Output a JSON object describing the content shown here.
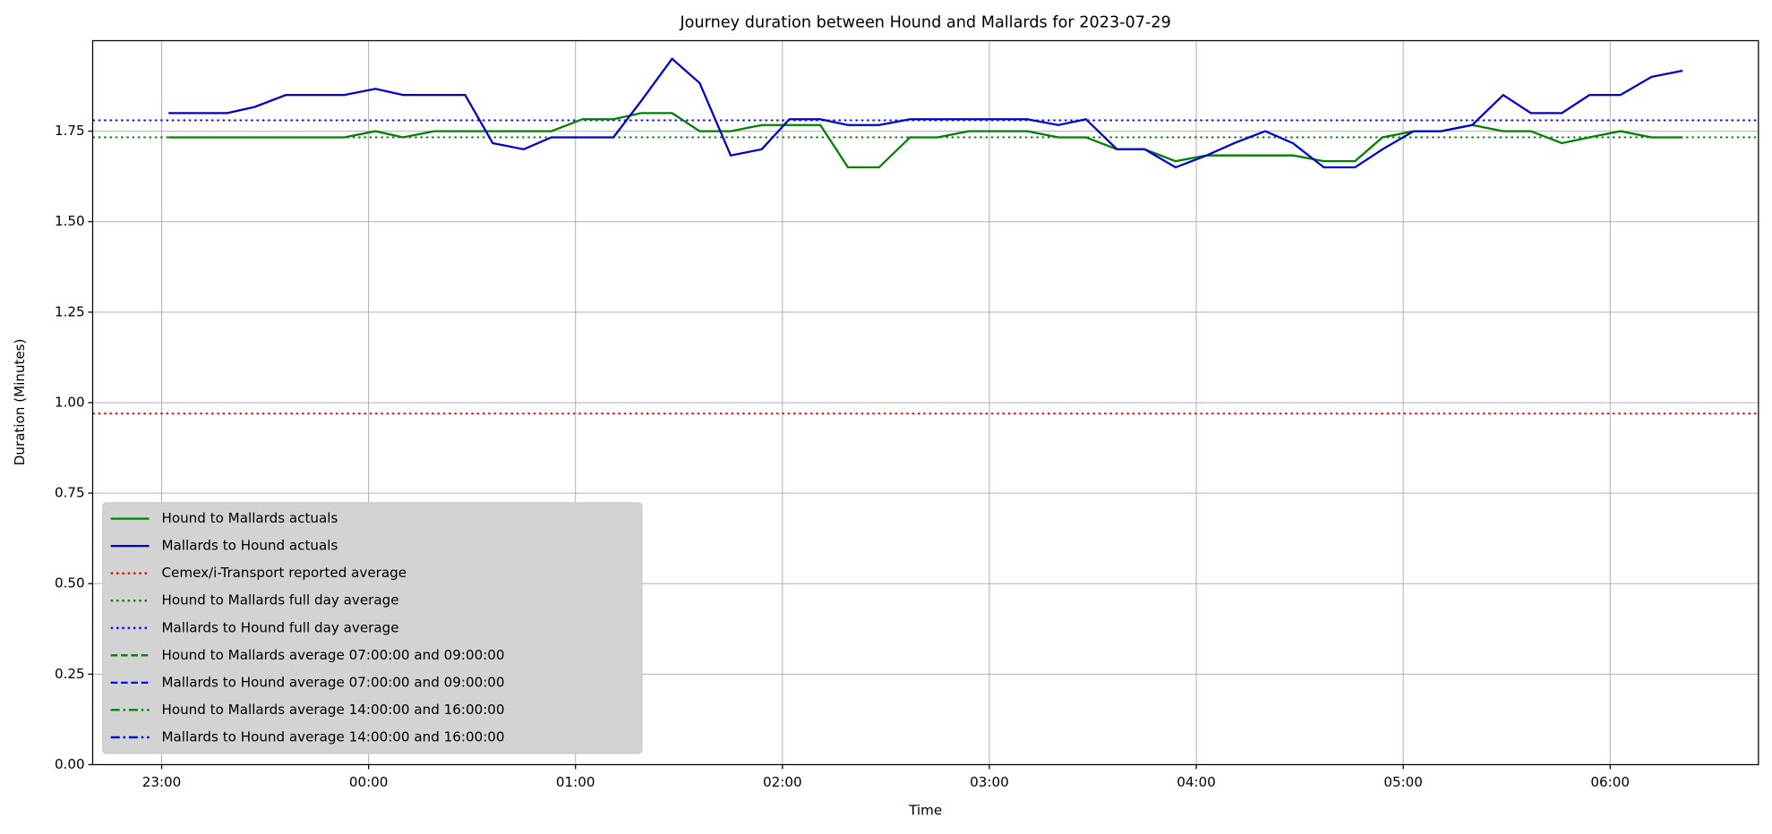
{
  "chart_data": {
    "type": "line",
    "title": "Journey duration between Hound and Mallards for 2023-07-29",
    "x_label": "Time",
    "y_label": "Duration  (Minutes)",
    "grid": true,
    "legend_position": "lower left",
    "xlim": [
      "22:40",
      "06:43"
    ],
    "xticks": [
      "23:00",
      "00:00",
      "01:00",
      "02:00",
      "03:00",
      "04:00",
      "05:00",
      "06:00"
    ],
    "ylim": [
      0,
      2.0
    ],
    "yticks": [
      {
        "value": 0,
        "label": "0.00"
      },
      {
        "value": 0.25,
        "label": "0.25"
      },
      {
        "value": 0.5,
        "label": "0.50"
      },
      {
        "value": 0.75,
        "label": "0.75"
      },
      {
        "value": 1,
        "label": "1.00"
      },
      {
        "value": 1.25,
        "label": "1.25"
      },
      {
        "value": 1.5,
        "label": "1.50"
      },
      {
        "value": 1.75,
        "label": "1.75"
      }
    ],
    "x": [
      "23:02",
      "23:10",
      "23:19",
      "23:27",
      "23:36",
      "23:45",
      "23:53",
      "00:02",
      "00:10",
      "00:19",
      "00:28",
      "00:36",
      "00:45",
      "00:53",
      "01:02",
      "01:11",
      "01:19",
      "01:28",
      "01:36",
      "01:45",
      "01:54",
      "02:02",
      "02:11",
      "02:19",
      "02:28",
      "02:37",
      "02:45",
      "02:54",
      "03:02",
      "03:11",
      "03:20",
      "03:28",
      "03:37",
      "03:45",
      "03:54",
      "04:03",
      "04:11",
      "04:20",
      "04:28",
      "04:37",
      "04:46",
      "04:54",
      "05:03",
      "05:11",
      "05:20",
      "05:29",
      "05:37",
      "05:46",
      "05:54",
      "06:03",
      "06:12",
      "06:21"
    ],
    "series": [
      {
        "name": "Hound to Mallards actuals",
        "color": "#008000",
        "style": "solid",
        "values": [
          1.733,
          1.733,
          1.733,
          1.733,
          1.733,
          1.733,
          1.733,
          1.75,
          1.733,
          1.75,
          1.75,
          1.75,
          1.75,
          1.75,
          1.783,
          1.783,
          1.8,
          1.8,
          1.75,
          1.75,
          1.767,
          1.767,
          1.767,
          1.65,
          1.65,
          1.733,
          1.733,
          1.75,
          1.75,
          1.75,
          1.733,
          1.733,
          1.7,
          1.7,
          1.667,
          1.683,
          1.683,
          1.683,
          1.683,
          1.667,
          1.667,
          1.733,
          1.75,
          1.75,
          1.767,
          1.75,
          1.75,
          1.717,
          1.733,
          1.75,
          1.733,
          1.733
        ]
      },
      {
        "name": "Mallards to Hound actuals",
        "color": "#0000cd",
        "style": "solid",
        "values": [
          1.8,
          1.8,
          1.8,
          1.817,
          1.85,
          1.85,
          1.85,
          1.867,
          1.85,
          1.85,
          1.85,
          1.717,
          1.7,
          1.733,
          1.733,
          1.733,
          1.833,
          1.95,
          1.883,
          1.683,
          1.7,
          1.783,
          1.783,
          1.767,
          1.767,
          1.783,
          1.783,
          1.783,
          1.783,
          1.783,
          1.767,
          1.783,
          1.7,
          1.7,
          1.65,
          1.683,
          1.717,
          1.75,
          1.717,
          1.65,
          1.65,
          1.7,
          1.75,
          1.75,
          1.767,
          1.85,
          1.8,
          1.8,
          1.85,
          1.85,
          1.9,
          1.917
        ]
      }
    ],
    "hlines": [
      {
        "name": "Cemex/i-Transport reported average",
        "color": "#ff0000",
        "style": "dotted",
        "value": 0.97
      },
      {
        "name": "Hound to Mallards full day average",
        "color": "#008000",
        "style": "dotted",
        "value": 1.733
      },
      {
        "name": "Mallards to Hound full day average",
        "color": "#0000ff",
        "style": "dotted",
        "value": 1.78
      }
    ],
    "unplotted_lines": [
      {
        "name": "Hound to Mallards average 07:00:00 and 09:00:00",
        "color": "#008000",
        "style": "dashed"
      },
      {
        "name": "Mallards to Hound average 07:00:00 and 09:00:00",
        "color": "#0000ff",
        "style": "dashed"
      },
      {
        "name": "Hound to Mallards average 14:00:00 and 16:00:00",
        "color": "#008000",
        "style": "dashdot"
      },
      {
        "name": "Mallards to Hound average 14:00:00 and 16:00:00",
        "color": "#0000ff",
        "style": "dashdot"
      }
    ]
  }
}
